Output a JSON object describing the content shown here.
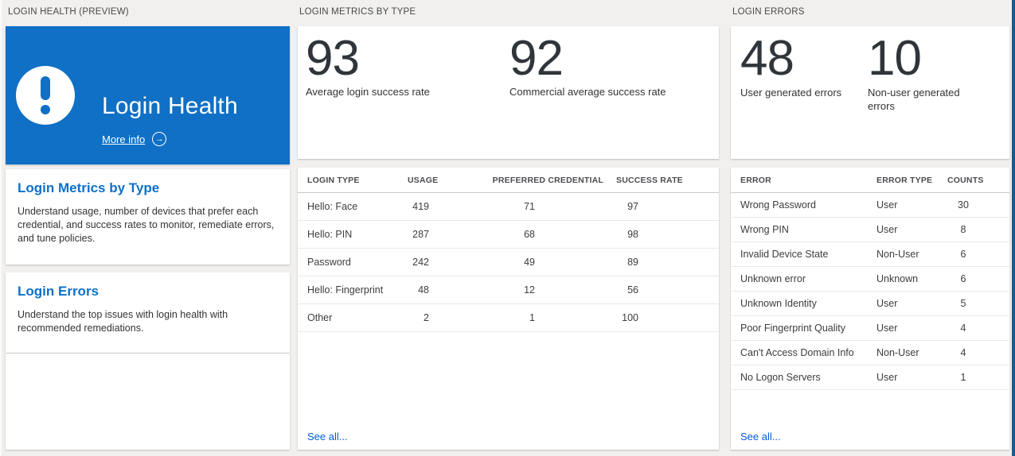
{
  "colors": {
    "banner_blue": "#0f70c5",
    "heading_blue": "#0e70c8",
    "link_blue": "#015cda",
    "right_edge_blue": "#1a5a8a",
    "page_background": "#f1f0ee"
  },
  "icons": {
    "alert_icon": "exclamation-circle",
    "more_info_arrow": "→"
  },
  "health": {
    "section_title": "LOGIN HEALTH (PREVIEW)",
    "banner": {
      "title": "Login Health",
      "more_info_label": "More info"
    },
    "links": [
      {
        "title": "Login Metrics by Type",
        "description": "Understand usage, number of devices that prefer each credential, and success rates to monitor, remediate errors, and tune policies."
      },
      {
        "title": "Login Errors",
        "description": "Understand the top issues with login health with recommended remediations."
      }
    ]
  },
  "metrics": {
    "section_title": "LOGIN METRICS BY TYPE",
    "stats": [
      {
        "value": "93",
        "label": "Average login success rate"
      },
      {
        "value": "92",
        "label": "Commercial average success rate"
      }
    ],
    "table": {
      "columns": [
        "LOGIN TYPE",
        "USAGE",
        "PREFERRED CREDENTIAL",
        "SUCCESS RATE"
      ],
      "rows": [
        [
          "Hello: Face",
          "419",
          "71",
          "97"
        ],
        [
          "Hello: PIN",
          "287",
          "68",
          "98"
        ],
        [
          "Password",
          "242",
          "49",
          "89"
        ],
        [
          "Hello: Fingerprint",
          "48",
          "12",
          "56"
        ],
        [
          "Other",
          "2",
          "1",
          "100"
        ]
      ]
    },
    "see_all": "See all..."
  },
  "errors": {
    "section_title": "LOGIN ERRORS",
    "stats": [
      {
        "value": "48",
        "label": "User generated errors"
      },
      {
        "value": "10",
        "label": "Non-user generated errors"
      }
    ],
    "table": {
      "columns": [
        "ERROR",
        "ERROR TYPE",
        "COUNTS"
      ],
      "rows": [
        [
          "Wrong Password",
          "User",
          "30"
        ],
        [
          "Wrong PIN",
          "User",
          "8"
        ],
        [
          "Invalid Device State",
          "Non-User",
          "6"
        ],
        [
          "Unknown error",
          "Unknown",
          "6"
        ],
        [
          "Unknown Identity",
          "User",
          "5"
        ],
        [
          "Poor Fingerprint Quality",
          "User",
          "4"
        ],
        [
          "Can't Access Domain Info",
          "Non-User",
          "4"
        ],
        [
          "No Logon Servers",
          "User",
          "1"
        ]
      ]
    },
    "see_all": "See all..."
  }
}
